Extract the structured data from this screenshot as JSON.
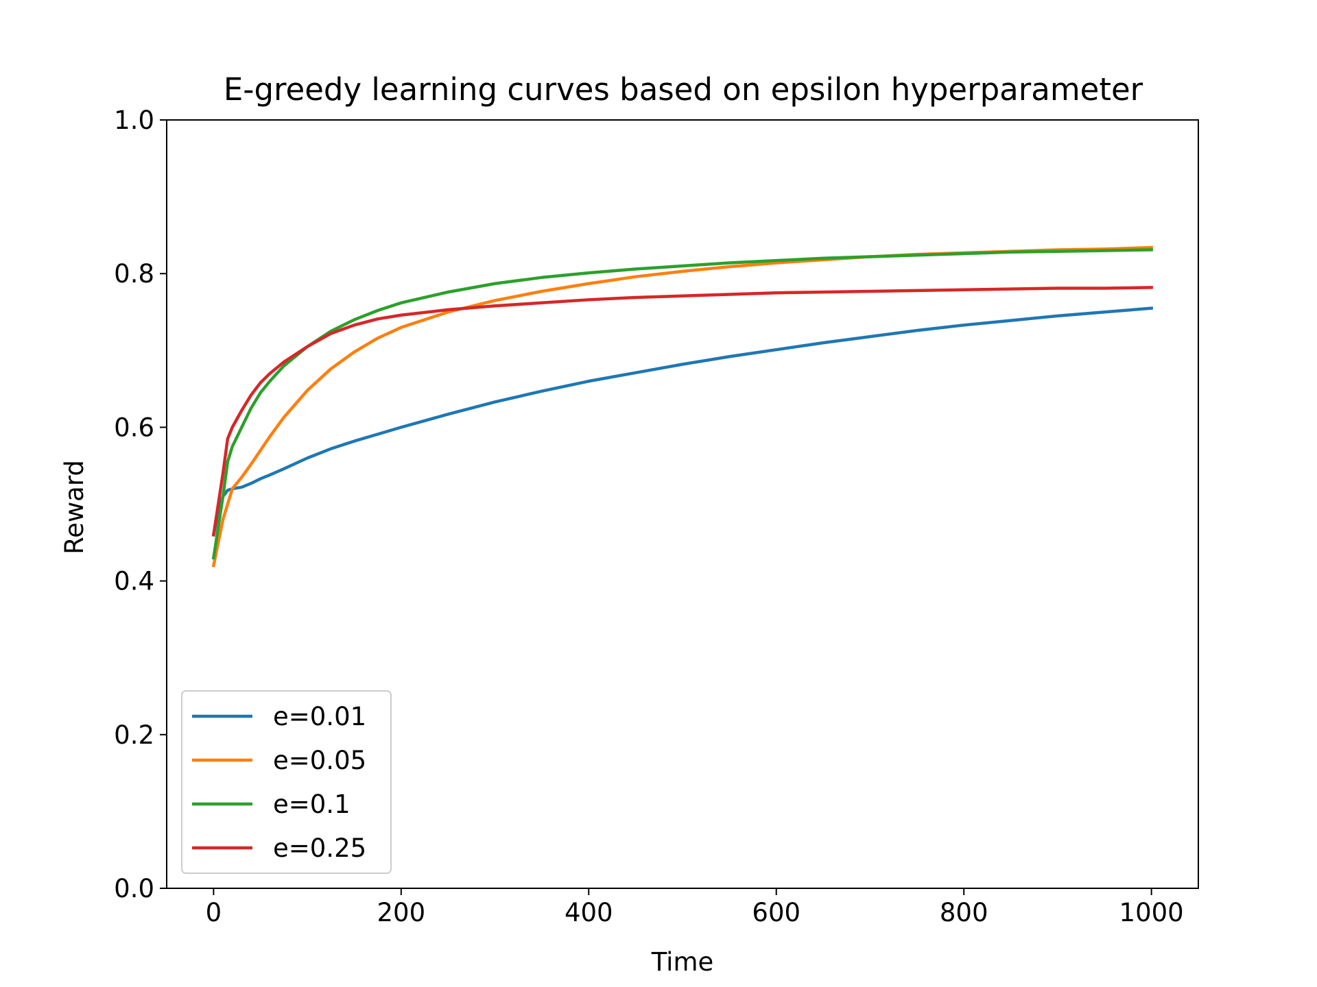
{
  "chart_data": {
    "type": "line",
    "title": "E-greedy learning curves based on epsilon hyperparameter",
    "xlabel": "Time",
    "ylabel": "Reward",
    "xlim": [
      -50,
      1050
    ],
    "ylim": [
      0.0,
      1.0
    ],
    "xticks": [
      0,
      200,
      400,
      600,
      800,
      1000
    ],
    "xtick_labels": [
      "0",
      "200",
      "400",
      "600",
      "800",
      "1000"
    ],
    "yticks": [
      0.0,
      0.2,
      0.4,
      0.6,
      0.8,
      1.0
    ],
    "ytick_labels": [
      "0.0",
      "0.2",
      "0.4",
      "0.6",
      "0.8",
      "1.0"
    ],
    "grid": false,
    "legend_position": "lower-left",
    "x": [
      0,
      5,
      10,
      15,
      20,
      30,
      40,
      50,
      60,
      75,
      100,
      125,
      150,
      175,
      200,
      250,
      300,
      350,
      400,
      450,
      500,
      550,
      600,
      650,
      700,
      750,
      800,
      850,
      900,
      950,
      1000
    ],
    "series": [
      {
        "name": "e=0.01",
        "color": "#1f77b4",
        "values": [
          0.46,
          0.49,
          0.51,
          0.518,
          0.52,
          0.522,
          0.527,
          0.533,
          0.538,
          0.546,
          0.56,
          0.572,
          0.582,
          0.591,
          0.6,
          0.617,
          0.633,
          0.647,
          0.66,
          0.671,
          0.682,
          0.692,
          0.701,
          0.71,
          0.718,
          0.726,
          0.733,
          0.739,
          0.745,
          0.75,
          0.755
        ]
      },
      {
        "name": "e=0.05",
        "color": "#ff7f0e",
        "values": [
          0.42,
          0.45,
          0.48,
          0.5,
          0.52,
          0.535,
          0.552,
          0.57,
          0.588,
          0.613,
          0.648,
          0.676,
          0.698,
          0.716,
          0.73,
          0.75,
          0.765,
          0.777,
          0.787,
          0.796,
          0.803,
          0.809,
          0.814,
          0.818,
          0.822,
          0.825,
          0.827,
          0.829,
          0.831,
          0.832,
          0.834
        ]
      },
      {
        "name": "e=0.1",
        "color": "#2ca02c",
        "values": [
          0.43,
          0.47,
          0.51,
          0.555,
          0.575,
          0.6,
          0.625,
          0.645,
          0.66,
          0.68,
          0.705,
          0.725,
          0.74,
          0.752,
          0.762,
          0.776,
          0.787,
          0.795,
          0.801,
          0.806,
          0.81,
          0.814,
          0.817,
          0.82,
          0.822,
          0.824,
          0.826,
          0.828,
          0.829,
          0.83,
          0.831
        ]
      },
      {
        "name": "e=0.25",
        "color": "#d62728",
        "values": [
          0.46,
          0.5,
          0.54,
          0.585,
          0.6,
          0.622,
          0.642,
          0.658,
          0.67,
          0.685,
          0.705,
          0.722,
          0.733,
          0.741,
          0.746,
          0.753,
          0.758,
          0.762,
          0.766,
          0.769,
          0.771,
          0.773,
          0.775,
          0.776,
          0.777,
          0.778,
          0.779,
          0.78,
          0.781,
          0.781,
          0.782
        ]
      }
    ]
  }
}
